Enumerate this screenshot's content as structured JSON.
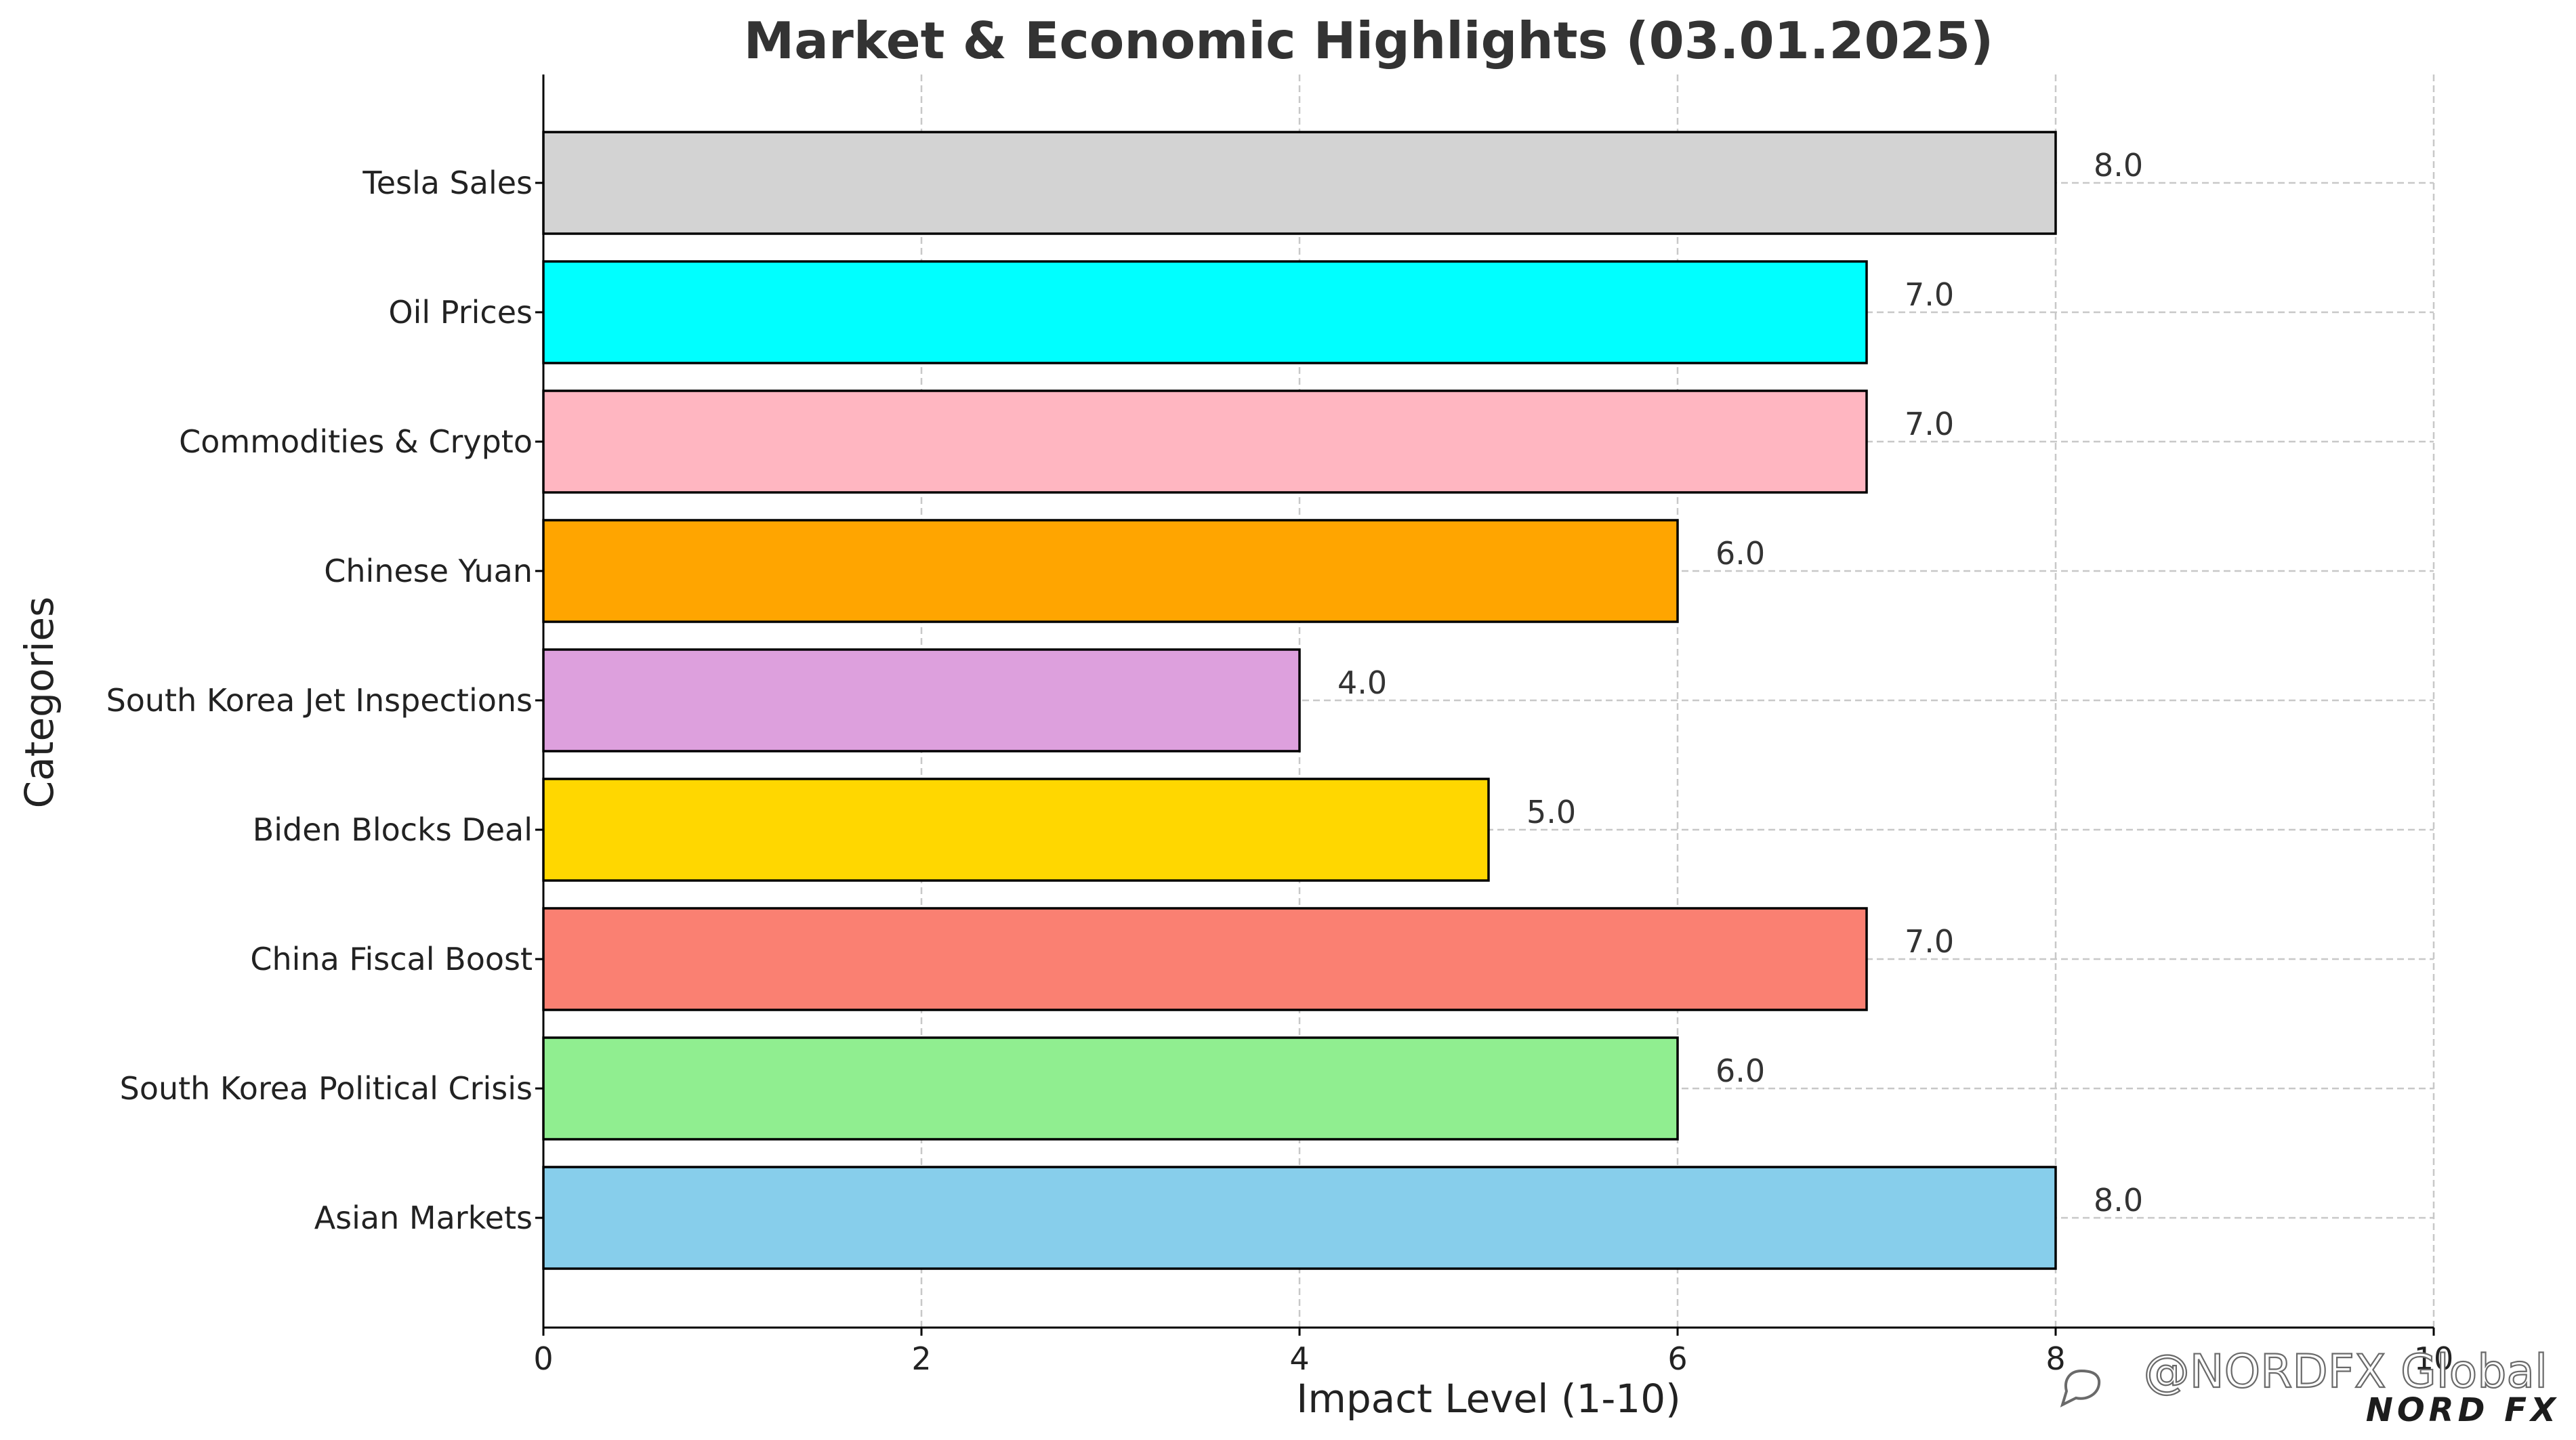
{
  "chart_data": {
    "type": "bar",
    "orientation": "horizontal",
    "title": "Market & Economic Highlights (03.01.2025)",
    "xlabel": "Impact Level (1-10)",
    "ylabel": "Categories",
    "xlim": [
      0,
      10
    ],
    "xticks": [
      0,
      2,
      4,
      6,
      8,
      10
    ],
    "grid": true,
    "categories": [
      "Asian Markets",
      "South Korea Political Crisis",
      "China Fiscal Boost",
      "Biden Blocks Deal",
      "South Korea Jet Inspections",
      "Chinese Yuan",
      "Commodities & Crypto",
      "Oil Prices",
      "Tesla Sales"
    ],
    "values": [
      8,
      6,
      7,
      5,
      4,
      6,
      7,
      7,
      8
    ],
    "value_labels": [
      "8.0",
      "6.0",
      "7.0",
      "5.0",
      "4.0",
      "6.0",
      "7.0",
      "7.0",
      "8.0"
    ],
    "colors": [
      "#87ceeb",
      "#90ee90",
      "#fa8072",
      "#ffd700",
      "#dda0dd",
      "#ffa500",
      "#ffb6c1",
      "#00ffff",
      "#d3d3d3"
    ]
  },
  "watermark": {
    "handle": "@NORDFX Global",
    "brand": "NORD FX",
    "icon": "chat-bubble-icon"
  }
}
